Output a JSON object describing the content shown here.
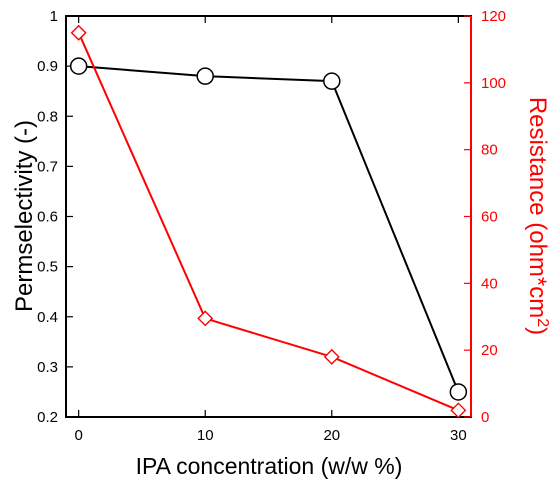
{
  "chart_data": {
    "type": "line",
    "title": "",
    "xlabel": "IPA concentration (w/w %)",
    "ylabel_left": "Permselectivity (-)",
    "ylabel_right": {
      "base": "Resistance (ohm*cm",
      "sup": "2",
      "suffix": ")"
    },
    "x": [
      0,
      10,
      20,
      30
    ],
    "xlim": [
      -1,
      31
    ],
    "ylim_left": [
      0.2,
      1.0
    ],
    "ylim_right": [
      0,
      120
    ],
    "xticks": [
      {
        "value": 0,
        "label": "0"
      },
      {
        "value": 10,
        "label": "10"
      },
      {
        "value": 20,
        "label": "20"
      },
      {
        "value": 30,
        "label": "30"
      }
    ],
    "yticks_left": [
      {
        "value": 0.2,
        "label": "0.2"
      },
      {
        "value": 0.3,
        "label": "0.3"
      },
      {
        "value": 0.4,
        "label": "0.4"
      },
      {
        "value": 0.5,
        "label": "0.5"
      },
      {
        "value": 0.6,
        "label": "0.6"
      },
      {
        "value": 0.7,
        "label": "0.7"
      },
      {
        "value": 0.8,
        "label": "0.8"
      },
      {
        "value": 0.9,
        "label": "0.9"
      },
      {
        "value": 1.0,
        "label": "1"
      }
    ],
    "yticks_right": [
      {
        "value": 0,
        "label": "0"
      },
      {
        "value": 20,
        "label": "20"
      },
      {
        "value": 40,
        "label": "40"
      },
      {
        "value": 60,
        "label": "60"
      },
      {
        "value": 80,
        "label": "80"
      },
      {
        "value": 100,
        "label": "100"
      },
      {
        "value": 120,
        "label": "120"
      }
    ],
    "series": [
      {
        "axis": "left",
        "values": [
          0.9,
          0.88,
          0.87,
          0.25
        ],
        "color": "#000000",
        "marker": "circle"
      },
      {
        "axis": "right",
        "values": [
          115,
          29.5,
          18,
          2
        ],
        "color": "#ff0000",
        "marker": "diamond"
      }
    ],
    "grid": false,
    "legend": "none"
  }
}
